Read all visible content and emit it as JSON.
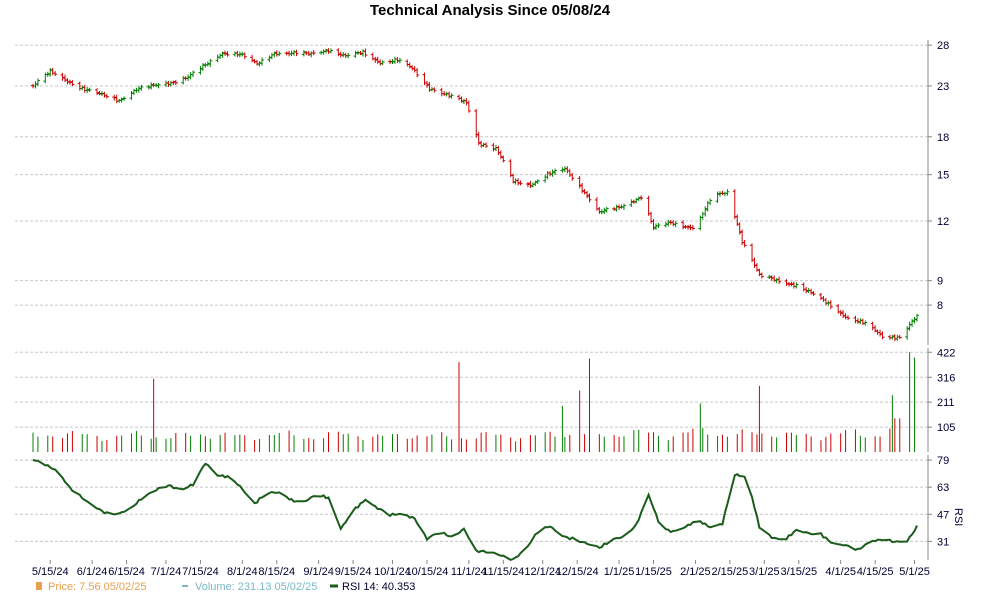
{
  "chart_data": [
    {
      "type": "candlestick",
      "title": "Technical Analysis Since 05/08/24",
      "ylim": [
        6.6,
        28.7
      ],
      "y_ticks": [
        "28",
        "23",
        "18",
        "15",
        "12",
        "9",
        "8"
      ],
      "x_ticks": [
        "5/15/24",
        "6/1/24",
        "6/15/24",
        "7/1/24",
        "7/15/24",
        "8/1/24",
        "8/15/24",
        "9/1/24",
        "9/15/24",
        "10/1/24",
        "10/15/24",
        "11/1/24",
        "11/15/24",
        "12/1/24",
        "12/15/24",
        "1/1/25",
        "1/15/25",
        "2/1/25",
        "2/15/25",
        "3/1/25",
        "3/15/25",
        "4/1/25",
        "4/15/25",
        "5/1/25"
      ],
      "grid": true,
      "close_anchors": [
        [
          "2024-05-08",
          23.0
        ],
        [
          "2024-05-15",
          24.6
        ],
        [
          "2024-05-22",
          23.6
        ],
        [
          "2024-05-29",
          22.6
        ],
        [
          "2024-06-05",
          22.0
        ],
        [
          "2024-06-12",
          21.5
        ],
        [
          "2024-06-19",
          22.6
        ],
        [
          "2024-06-26",
          23.0
        ],
        [
          "2024-07-03",
          23.4
        ],
        [
          "2024-07-10",
          24.0
        ],
        [
          "2024-07-17",
          25.4
        ],
        [
          "2024-07-24",
          27.0
        ],
        [
          "2024-07-31",
          26.8
        ],
        [
          "2024-08-07",
          25.5
        ],
        [
          "2024-08-14",
          27.0
        ],
        [
          "2024-08-28",
          26.8
        ],
        [
          "2024-09-05",
          27.4
        ],
        [
          "2024-09-12",
          26.5
        ],
        [
          "2024-09-19",
          27.0
        ],
        [
          "2024-09-26",
          25.8
        ],
        [
          "2024-10-03",
          26.0
        ],
        [
          "2024-10-09",
          25.0
        ],
        [
          "2024-10-16",
          22.8
        ],
        [
          "2024-10-23",
          22.0
        ],
        [
          "2024-10-31",
          21.2
        ],
        [
          "2024-11-05",
          17.5
        ],
        [
          "2024-11-12",
          17.0
        ],
        [
          "2024-11-19",
          14.5
        ],
        [
          "2024-11-26",
          14.3
        ],
        [
          "2024-12-03",
          15.0
        ],
        [
          "2024-12-10",
          15.4
        ],
        [
          "2024-12-17",
          14.0
        ],
        [
          "2024-12-24",
          12.5
        ],
        [
          "2025-01-01",
          12.8
        ],
        [
          "2025-01-10",
          13.5
        ],
        [
          "2025-01-15",
          11.6
        ],
        [
          "2025-01-22",
          11.9
        ],
        [
          "2025-02-01",
          11.6
        ],
        [
          "2025-02-08",
          13.5
        ],
        [
          "2025-02-14",
          13.8
        ],
        [
          "2025-02-20",
          10.9
        ],
        [
          "2025-02-27",
          9.2
        ],
        [
          "2025-03-07",
          9.0
        ],
        [
          "2025-03-14",
          8.8
        ],
        [
          "2025-03-21",
          8.4
        ],
        [
          "2025-03-28",
          8.0
        ],
        [
          "2025-04-04",
          7.5
        ],
        [
          "2025-04-11",
          7.3
        ],
        [
          "2025-04-18",
          6.9
        ],
        [
          "2025-04-25",
          6.85
        ],
        [
          "2025-05-02",
          7.56
        ]
      ]
    },
    {
      "type": "bar",
      "title": "Volume",
      "ylim": [
        0,
        440
      ],
      "y_ticks": [
        "422",
        "316",
        "211",
        "105"
      ],
      "volume_level_anchors": [
        [
          "2024-05-08",
          105
        ],
        [
          "2024-06-15",
          95
        ],
        [
          "2024-07-15",
          100
        ],
        [
          "2024-08-15",
          98
        ],
        [
          "2024-09-15",
          100
        ],
        [
          "2024-10-15",
          95
        ],
        [
          "2024-11-15",
          95
        ],
        [
          "2024-12-15",
          105
        ],
        [
          "2025-01-15",
          110
        ],
        [
          "2025-02-15",
          115
        ],
        [
          "2025-03-15",
          100
        ],
        [
          "2025-04-15",
          110
        ],
        [
          "2025-05-02",
          220
        ]
      ],
      "volume_spikes": [
        [
          "2024-06-26",
          310
        ],
        [
          "2024-10-28",
          380
        ],
        [
          "2024-12-09",
          195
        ],
        [
          "2024-12-16",
          260
        ],
        [
          "2024-12-20",
          395
        ],
        [
          "2025-02-03",
          205
        ],
        [
          "2025-02-27",
          280
        ],
        [
          "2025-04-22",
          240
        ],
        [
          "2025-04-29",
          422
        ],
        [
          "2025-05-01",
          400
        ]
      ]
    },
    {
      "type": "line",
      "title": "RSI",
      "ylabel": "RSI",
      "ylim": [
        20,
        82
      ],
      "y_ticks": [
        "79",
        "63",
        "47",
        "31"
      ],
      "series": [
        {
          "name": "RSI 14",
          "points": [
            [
              "2024-05-08",
              79
            ],
            [
              "2024-05-13",
              77
            ],
            [
              "2024-05-18",
              73
            ],
            [
              "2024-05-23",
              62
            ],
            [
              "2024-05-28",
              56
            ],
            [
              "2024-06-02",
              52
            ],
            [
              "2024-06-07",
              48
            ],
            [
              "2024-06-12",
              47
            ],
            [
              "2024-06-17",
              50
            ],
            [
              "2024-06-22",
              58
            ],
            [
              "2024-06-27",
              62
            ],
            [
              "2024-07-02",
              64
            ],
            [
              "2024-07-07",
              60
            ],
            [
              "2024-07-12",
              65
            ],
            [
              "2024-07-17",
              78
            ],
            [
              "2024-07-22",
              70
            ],
            [
              "2024-07-27",
              68
            ],
            [
              "2024-08-01",
              62
            ],
            [
              "2024-08-06",
              54
            ],
            [
              "2024-08-11",
              60
            ],
            [
              "2024-08-16",
              59
            ],
            [
              "2024-08-21",
              55
            ],
            [
              "2024-08-26",
              55
            ],
            [
              "2024-08-31",
              59
            ],
            [
              "2024-09-05",
              56
            ],
            [
              "2024-09-10",
              38
            ],
            [
              "2024-09-15",
              50
            ],
            [
              "2024-09-20",
              56
            ],
            [
              "2024-09-25",
              50
            ],
            [
              "2024-09-30",
              46
            ],
            [
              "2024-10-05",
              48
            ],
            [
              "2024-10-10",
              45
            ],
            [
              "2024-10-15",
              32
            ],
            [
              "2024-10-20",
              36
            ],
            [
              "2024-10-25",
              34
            ],
            [
              "2024-10-30",
              39
            ],
            [
              "2024-11-04",
              25
            ],
            [
              "2024-11-09",
              24
            ],
            [
              "2024-11-14",
              23
            ],
            [
              "2024-11-19",
              21
            ],
            [
              "2024-11-24",
              26
            ],
            [
              "2024-11-29",
              36
            ],
            [
              "2024-12-04",
              40
            ],
            [
              "2024-12-09",
              35
            ],
            [
              "2024-12-14",
              32
            ],
            [
              "2024-12-19",
              29
            ],
            [
              "2024-12-24",
              27
            ],
            [
              "2024-12-29",
              33
            ],
            [
              "2025-01-03",
              34
            ],
            [
              "2025-01-08",
              40
            ],
            [
              "2025-01-13",
              58
            ],
            [
              "2025-01-18",
              40
            ],
            [
              "2025-01-23",
              37
            ],
            [
              "2025-01-28",
              39
            ],
            [
              "2025-02-02",
              43
            ],
            [
              "2025-02-07",
              40
            ],
            [
              "2025-02-12",
              42
            ],
            [
              "2025-02-17",
              70
            ],
            [
              "2025-02-22",
              68
            ],
            [
              "2025-02-27",
              40
            ],
            [
              "2025-03-04",
              34
            ],
            [
              "2025-03-09",
              31
            ],
            [
              "2025-03-14",
              37
            ],
            [
              "2025-03-19",
              36
            ],
            [
              "2025-03-24",
              36
            ],
            [
              "2025-03-29",
              29
            ],
            [
              "2025-04-03",
              28
            ],
            [
              "2025-04-08",
              26
            ],
            [
              "2025-04-13",
              32
            ],
            [
              "2025-04-18",
              32
            ],
            [
              "2025-04-23",
              30
            ],
            [
              "2025-04-28",
              31
            ],
            [
              "2025-05-02",
              40.35
            ]
          ]
        }
      ]
    }
  ],
  "legend": {
    "price_label": "Price: 7.56  05/02/25",
    "volume_label": "Volume: 231.13  05/02/25",
    "rsi_label": "RSI 14: 40.353",
    "price_color": "#e8a050",
    "volume_color": "#7ab8c8",
    "rsi_color": "#1a5c1a"
  },
  "colors": {
    "up": "#008000",
    "down": "#cc0000",
    "axis_text": "#000033"
  }
}
